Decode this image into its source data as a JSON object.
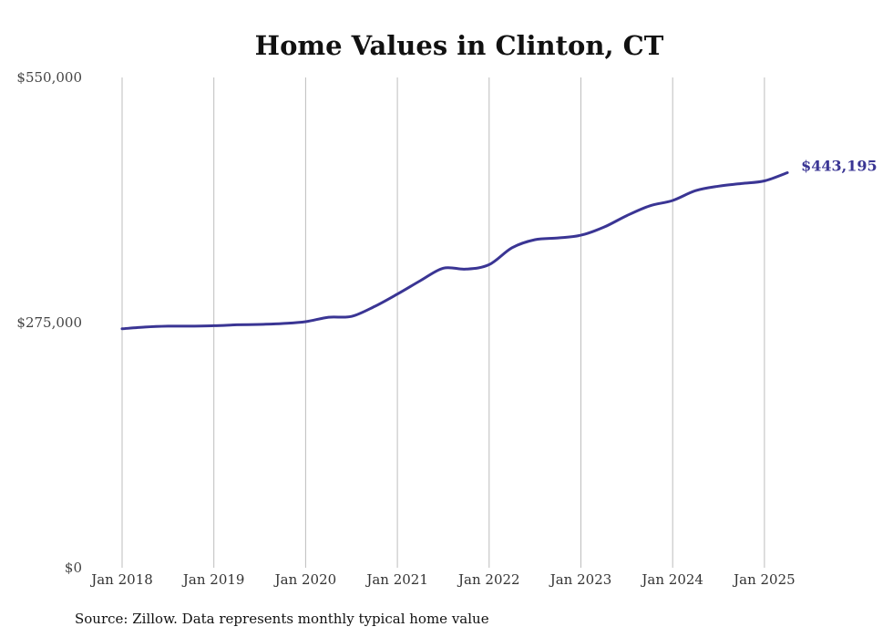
{
  "chart_data": {
    "type": "line",
    "title": "Home Values in Clinton, CT",
    "xlabel": "",
    "ylabel": "",
    "ylim": [
      0,
      550000
    ],
    "y_ticks": [
      {
        "value": 0,
        "label": "$0"
      },
      {
        "value": 275000,
        "label": "$275,000"
      },
      {
        "value": 550000,
        "label": "$550,000"
      }
    ],
    "x_ticks": [
      {
        "value": "2018-01",
        "label": "Jan 2018"
      },
      {
        "value": "2019-01",
        "label": "Jan 2019"
      },
      {
        "value": "2020-01",
        "label": "Jan 2020"
      },
      {
        "value": "2021-01",
        "label": "Jan 2021"
      },
      {
        "value": "2022-01",
        "label": "Jan 2022"
      },
      {
        "value": "2023-01",
        "label": "Jan 2023"
      },
      {
        "value": "2024-01",
        "label": "Jan 2024"
      },
      {
        "value": "2025-01",
        "label": "Jan 2025"
      }
    ],
    "grid": "vertical",
    "legend": "none",
    "series_color": "#3a3594",
    "series": [
      {
        "x": [
          "2018-01",
          "2018-04",
          "2018-07",
          "2018-10",
          "2019-01",
          "2019-04",
          "2019-07",
          "2019-10",
          "2020-01",
          "2020-04",
          "2020-07",
          "2020-10",
          "2021-01",
          "2021-04",
          "2021-07",
          "2021-10",
          "2022-01",
          "2022-04",
          "2022-07",
          "2022-10",
          "2023-01",
          "2023-04",
          "2023-07",
          "2023-10",
          "2024-01",
          "2024-04",
          "2024-07",
          "2024-10",
          "2025-01",
          "2025-04"
        ],
        "values": [
          268000,
          270000,
          271000,
          271000,
          271500,
          272500,
          273000,
          274000,
          276000,
          281000,
          282000,
          293000,
          307000,
          322000,
          336000,
          335000,
          340000,
          359000,
          368000,
          370000,
          373000,
          382000,
          395000,
          406000,
          412000,
          423000,
          428000,
          431000,
          434000,
          443195
        ]
      }
    ],
    "end_label": "$443,195",
    "source_note": "Source: Zillow. Data represents monthly typical home value"
  }
}
